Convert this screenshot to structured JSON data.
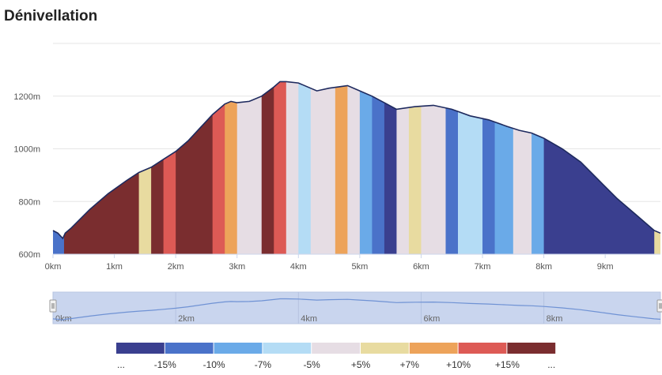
{
  "header": {
    "title": "Dénivellation"
  },
  "colors": {
    "grid": "#e6e6e6",
    "profile_line": "#1e2a5e",
    "navigator_fill": "#c9d5ee",
    "navigator_line": "#6f92d4",
    "handle": "#f2f2f2"
  },
  "gradient_classes": [
    {
      "key": "lt-15",
      "color": "#3a3f8f"
    },
    {
      "key": "-15_-10",
      "color": "#4a72c9"
    },
    {
      "key": "-10_-7",
      "color": "#6aaae8"
    },
    {
      "key": "-7_-5",
      "color": "#b4dcf5"
    },
    {
      "key": "-5_5",
      "color": "#e6dde4"
    },
    {
      "key": "5_7",
      "color": "#e8dba0"
    },
    {
      "key": "7_10",
      "color": "#eda35a"
    },
    {
      "key": "10_15",
      "color": "#dd5a55"
    },
    {
      "key": "gt15",
      "color": "#7a2d2f"
    }
  ],
  "legend": {
    "labels": [
      "...",
      "-15%",
      "-10%",
      "-7%",
      "-5%",
      "+5%",
      "+7%",
      "+10%",
      "+15%",
      "..."
    ]
  },
  "chart_data": {
    "type": "area",
    "title": "Dénivellation",
    "xlabel": "",
    "ylabel": "",
    "x_unit": "km",
    "y_unit": "m",
    "xlim": [
      0,
      9.9
    ],
    "ylim": [
      600,
      1400
    ],
    "x_ticks": [
      "0km",
      "1km",
      "2km",
      "3km",
      "4km",
      "5km",
      "6km",
      "7km",
      "8km",
      "9km"
    ],
    "y_ticks": [
      "600m",
      "800m",
      "1000m",
      "1200m"
    ],
    "navigator_ticks": [
      "0km",
      "2km",
      "4km",
      "6km",
      "8km"
    ],
    "elevation_profile": {
      "x": [
        0,
        0.08,
        0.16,
        0.2,
        0.3,
        0.6,
        0.9,
        1.2,
        1.4,
        1.6,
        1.8,
        2.0,
        2.2,
        2.6,
        2.8,
        2.9,
        3.0,
        3.2,
        3.4,
        3.6,
        3.7,
        3.8,
        4.0,
        4.3,
        4.5,
        4.8,
        5.0,
        5.2,
        5.4,
        5.6,
        5.9,
        6.2,
        6.5,
        6.8,
        7.1,
        7.4,
        7.6,
        7.8,
        8.0,
        8.3,
        8.6,
        8.9,
        9.2,
        9.5,
        9.8,
        9.9
      ],
      "y": [
        690,
        680,
        660,
        680,
        700,
        770,
        830,
        880,
        910,
        930,
        960,
        990,
        1030,
        1130,
        1170,
        1180,
        1175,
        1180,
        1200,
        1235,
        1255,
        1255,
        1250,
        1220,
        1230,
        1240,
        1220,
        1200,
        1175,
        1150,
        1160,
        1165,
        1150,
        1125,
        1110,
        1085,
        1070,
        1060,
        1040,
        1000,
        950,
        880,
        810,
        750,
        690,
        680
      ]
    },
    "gradient_segments": [
      {
        "from": 0,
        "to": 0.18,
        "class": "-15_-10"
      },
      {
        "from": 0.18,
        "to": 1.4,
        "class": "gt15"
      },
      {
        "from": 1.4,
        "to": 1.6,
        "class": "5_7"
      },
      {
        "from": 1.6,
        "to": 1.8,
        "class": "gt15"
      },
      {
        "from": 1.8,
        "to": 2.0,
        "class": "10_15"
      },
      {
        "from": 2.0,
        "to": 2.6,
        "class": "gt15"
      },
      {
        "from": 2.6,
        "to": 2.8,
        "class": "10_15"
      },
      {
        "from": 2.8,
        "to": 3.0,
        "class": "7_10"
      },
      {
        "from": 3.0,
        "to": 3.4,
        "class": "-5_5"
      },
      {
        "from": 3.4,
        "to": 3.6,
        "class": "gt15"
      },
      {
        "from": 3.6,
        "to": 3.8,
        "class": "10_15"
      },
      {
        "from": 3.8,
        "to": 4.0,
        "class": "-5_5"
      },
      {
        "from": 4.0,
        "to": 4.2,
        "class": "-7_-5"
      },
      {
        "from": 4.2,
        "to": 4.6,
        "class": "-5_5"
      },
      {
        "from": 4.6,
        "to": 4.8,
        "class": "7_10"
      },
      {
        "from": 4.8,
        "to": 5.0,
        "class": "-5_5"
      },
      {
        "from": 5.0,
        "to": 5.2,
        "class": "-10_-7"
      },
      {
        "from": 5.2,
        "to": 5.4,
        "class": "-15_-10"
      },
      {
        "from": 5.4,
        "to": 5.6,
        "class": "lt-15"
      },
      {
        "from": 5.6,
        "to": 5.8,
        "class": "-5_5"
      },
      {
        "from": 5.8,
        "to": 6.0,
        "class": "5_7"
      },
      {
        "from": 6.0,
        "to": 6.4,
        "class": "-5_5"
      },
      {
        "from": 6.4,
        "to": 6.6,
        "class": "-15_-10"
      },
      {
        "from": 6.6,
        "to": 7.0,
        "class": "-7_-5"
      },
      {
        "from": 7.0,
        "to": 7.2,
        "class": "-15_-10"
      },
      {
        "from": 7.2,
        "to": 7.5,
        "class": "-10_-7"
      },
      {
        "from": 7.5,
        "to": 7.8,
        "class": "-5_5"
      },
      {
        "from": 7.8,
        "to": 8.0,
        "class": "-10_-7"
      },
      {
        "from": 8.0,
        "to": 9.8,
        "class": "lt-15"
      },
      {
        "from": 9.8,
        "to": 9.9,
        "class": "5_7"
      }
    ],
    "grid": true,
    "legend_position": "bottom"
  }
}
